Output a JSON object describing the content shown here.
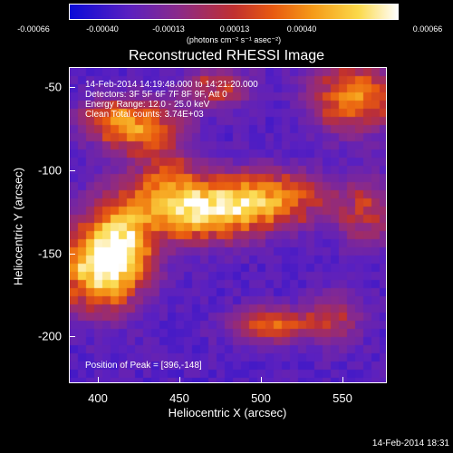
{
  "colorbar": {
    "ticks": [
      "-0.00066",
      "-0.00040",
      "-0.00013",
      "0.00013",
      "0.00040",
      "0.00066"
    ],
    "units": "(photons cm⁻² s⁻¹ asec⁻²)",
    "colors": [
      "#0a0ad8",
      "#5a20c0",
      "#8a2a8a",
      "#c03030",
      "#e85a10",
      "#f59a18",
      "#fbd94a",
      "#ffffff"
    ]
  },
  "title": "Reconstructed RHESSI Image",
  "info": {
    "line1": "14-Feb-2014 14:19:48.000 to 14:21:20.000",
    "line2": "Detectors: 3F 5F 6F 7F 8F 9F, Att 0",
    "line3": "Energy Range: 12.0 - 25.0 keV",
    "line4": "Clean     Total counts: 3.74E+03",
    "peak": "Position of Peak = [396,-148]"
  },
  "axes": {
    "xlabel": "Heliocentric X (arcsec)",
    "ylabel": "Heliocentric Y (arcsec)",
    "xticks": [
      "400",
      "450",
      "500",
      "550"
    ],
    "yticks": [
      "-50",
      "-100",
      "-150",
      "-200"
    ]
  },
  "timestamp": "14-Feb-2014 18:31"
}
